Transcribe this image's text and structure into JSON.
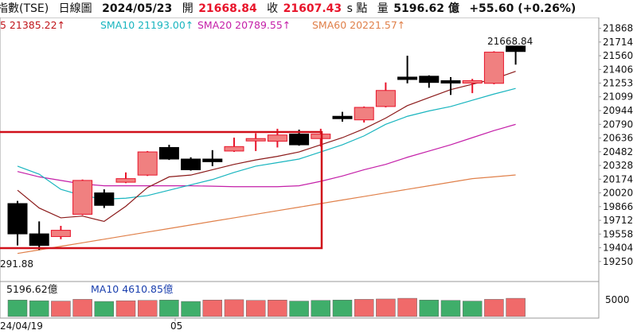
{
  "header": {
    "title": "指數(TSE)",
    "period": "日線圖",
    "date": "2024/05/23",
    "open_label": "開",
    "open_value": "21668.84",
    "close_label": "收",
    "close_value": "21607.43",
    "unit": "s 點",
    "volume_label": "量",
    "volume_value": "5196.62 億",
    "change": "+55.60 (+0.26%)"
  },
  "sma": [
    {
      "label": "5 21385.22↑",
      "color": "#c0151b"
    },
    {
      "label": "SMA10 21193.00↑",
      "color": "#19b5bf"
    },
    {
      "label": "SMA20 20789.55↑",
      "color": "#c41fa8"
    },
    {
      "label": "SMA60 20221.57↑",
      "color": "#e0804a"
    }
  ],
  "annotations": {
    "high_label": "21668.84",
    "low_label": "291.88"
  },
  "volume_panel": {
    "volume_label": "5196.62億",
    "ma_label": "MA10 4610.85億",
    "axis_label": "5000"
  },
  "date_axis": {
    "left": "24/04/19",
    "mid": "05"
  },
  "colors": {
    "up": "#f08080",
    "down": "#000000",
    "sma5": "#8b1a1a",
    "sma10": "#19b5bf",
    "sma20": "#c41fa8",
    "sma60": "#e0804a",
    "highlight_box": "#d0101a"
  },
  "chart_data": {
    "type": "candlestick",
    "y_ticks": [
      21868,
      21714,
      21560,
      21406,
      21253,
      21099,
      20944,
      20790,
      20636,
      20482,
      20328,
      20174,
      20020,
      19866,
      19712,
      19558,
      19404,
      19250
    ],
    "ylim": [
      19150,
      21900
    ],
    "candles": [
      {
        "o": 19900,
        "c": 19560,
        "h": 19930,
        "l": 19430
      },
      {
        "o": 19560,
        "c": 19430,
        "h": 19700,
        "l": 19380
      },
      {
        "o": 19530,
        "c": 19600,
        "h": 19650,
        "l": 19500
      },
      {
        "o": 19780,
        "c": 20160,
        "h": 20170,
        "l": 19770
      },
      {
        "o": 20020,
        "c": 19880,
        "h": 20060,
        "l": 19850
      },
      {
        "o": 20140,
        "c": 20180,
        "h": 20250,
        "l": 20130
      },
      {
        "o": 20220,
        "c": 20480,
        "h": 20490,
        "l": 20210
      },
      {
        "o": 20530,
        "c": 20400,
        "h": 20560,
        "l": 20390
      },
      {
        "o": 20400,
        "c": 20280,
        "h": 20420,
        "l": 20270
      },
      {
        "o": 20400,
        "c": 20370,
        "h": 20500,
        "l": 20320
      },
      {
        "o": 20490,
        "c": 20540,
        "h": 20640,
        "l": 20480
      },
      {
        "o": 20610,
        "c": 20630,
        "h": 20690,
        "l": 20490
      },
      {
        "o": 20600,
        "c": 20670,
        "h": 20740,
        "l": 20530
      },
      {
        "o": 20680,
        "c": 20560,
        "h": 20730,
        "l": 20550
      },
      {
        "o": 20630,
        "c": 20680,
        "h": 20740,
        "l": 20540
      },
      {
        "o": 20880,
        "c": 20860,
        "h": 20930,
        "l": 20820
      },
      {
        "o": 20840,
        "c": 20980,
        "h": 20990,
        "l": 20810
      },
      {
        "o": 20990,
        "c": 21170,
        "h": 21260,
        "l": 20980
      },
      {
        "o": 21320,
        "c": 21300,
        "h": 21560,
        "l": 21250
      },
      {
        "o": 21330,
        "c": 21260,
        "h": 21340,
        "l": 21200
      },
      {
        "o": 21280,
        "c": 21270,
        "h": 21320,
        "l": 21120
      },
      {
        "o": 21270,
        "c": 21280,
        "h": 21300,
        "l": 21140
      },
      {
        "o": 21250,
        "c": 21600,
        "h": 21610,
        "l": 21240
      },
      {
        "o": 21668.84,
        "c": 21607.43,
        "h": 21668.84,
        "l": 21460
      }
    ],
    "sma5": [
      20050,
      19850,
      19740,
      19760,
      19700,
      19870,
      20080,
      20200,
      20220,
      20280,
      20340,
      20390,
      20430,
      20480,
      20560,
      20640,
      20740,
      20860,
      21000,
      21090,
      21180,
      21240,
      21300,
      21385.22
    ],
    "sma10": [
      20320,
      20230,
      20060,
      19990,
      19950,
      19960,
      19990,
      20050,
      20110,
      20170,
      20250,
      20320,
      20360,
      20400,
      20480,
      20560,
      20660,
      20790,
      20880,
      20940,
      20990,
      21060,
      21130,
      21193.0
    ],
    "sma20": [
      20260,
      20200,
      20160,
      20120,
      20100,
      20100,
      20100,
      20100,
      20100,
      20095,
      20090,
      20090,
      20090,
      20100,
      20150,
      20210,
      20280,
      20340,
      20420,
      20490,
      20560,
      20640,
      20720,
      20789.55
    ],
    "sma60": [
      19340,
      19380,
      19420,
      19460,
      19500,
      19540,
      19580,
      19620,
      19660,
      19700,
      19740,
      19780,
      19820,
      19860,
      19900,
      19940,
      19980,
      20020,
      20060,
      20100,
      20140,
      20180,
      20200,
      20221.57
    ],
    "volume": [
      {
        "v": 4700,
        "up": false
      },
      {
        "v": 4500,
        "up": false
      },
      {
        "v": 4400,
        "up": true
      },
      {
        "v": 4900,
        "up": true
      },
      {
        "v": 4300,
        "up": false
      },
      {
        "v": 4500,
        "up": true
      },
      {
        "v": 4600,
        "up": true
      },
      {
        "v": 4700,
        "up": false
      },
      {
        "v": 4300,
        "up": false
      },
      {
        "v": 4700,
        "up": true
      },
      {
        "v": 4800,
        "up": true
      },
      {
        "v": 4600,
        "up": true
      },
      {
        "v": 4700,
        "up": true
      },
      {
        "v": 4400,
        "up": false
      },
      {
        "v": 4600,
        "up": false
      },
      {
        "v": 4700,
        "up": false
      },
      {
        "v": 4900,
        "up": true
      },
      {
        "v": 5000,
        "up": true
      },
      {
        "v": 5200,
        "up": true
      },
      {
        "v": 4700,
        "up": false
      },
      {
        "v": 4600,
        "up": false
      },
      {
        "v": 4400,
        "up": false
      },
      {
        "v": 4900,
        "up": true
      },
      {
        "v": 5196.62,
        "up": true
      }
    ],
    "vol_ylim": [
      0,
      5900
    ]
  }
}
